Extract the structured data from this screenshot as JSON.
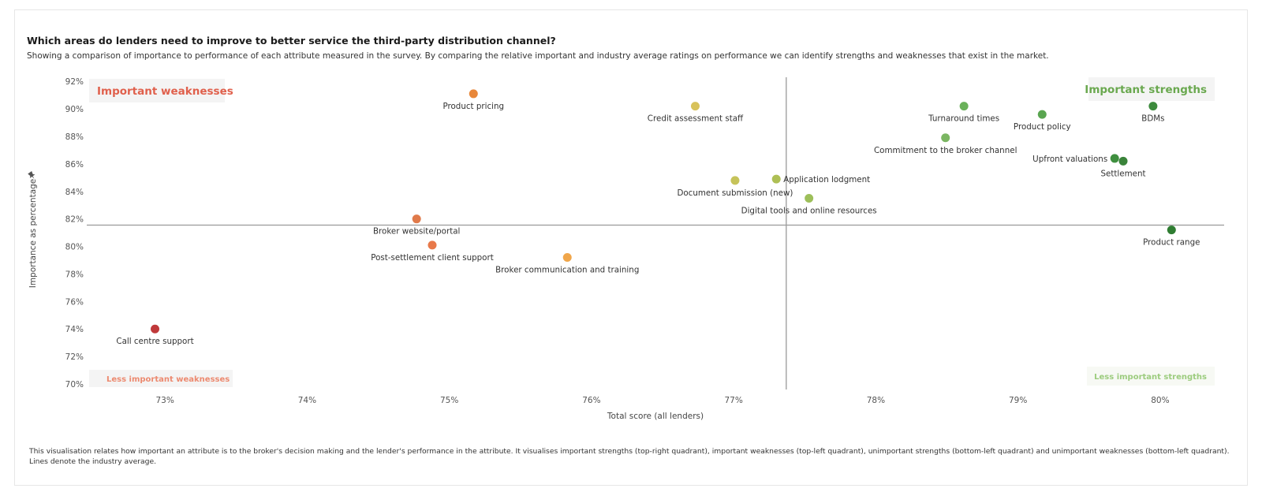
{
  "title": "Which areas do lenders need to improve to better service the third-party distribution channel?",
  "subtitle": "Showing a comparison of importance to performance of each attribute measured in the survey. By comparing the relative important and industry average ratings on performance we can identify strengths and weaknesses that exist in the market.",
  "footnote": "This visualisation relates how important an attribute is to the broker's decision making and the lender's performance in the attribute. It visualises important strengths (top-right quadrant), important weaknesses (top-left quadrant), unimportant strengths (bottom-left quadrant) and unimportant weaknesses (bottom-left quadrant). Lines denote the industry average.",
  "pin_icon": "pin-icon",
  "quadrants": {
    "top_left": {
      "label": "Important weaknesses",
      "color": "#e0604c",
      "bg": "#f4f4f4"
    },
    "top_right": {
      "label": "Important strengths",
      "color": "#6aa84f",
      "bg": "#f4f4f4"
    },
    "bottom_left": {
      "label": "Less important weaknesses",
      "color": "#ec8a70",
      "bg": "#f4f4f4"
    },
    "bottom_right": {
      "label": "Less important strengths",
      "color": "#9ccc7e",
      "bg": "#f7f9f4"
    }
  },
  "chart_data": {
    "type": "scatter",
    "xlabel": "Total score (all lenders)",
    "ylabel": "Importance as percentage",
    "xlim": [
      72.45,
      80.45
    ],
    "ylim": [
      69.6,
      92.3
    ],
    "x_ticks": [
      "73%",
      "74%",
      "75%",
      "76%",
      "77%",
      "78%",
      "79%",
      "80%"
    ],
    "x_tick_values": [
      73,
      74,
      75,
      76,
      77,
      78,
      79,
      80
    ],
    "y_ticks": [
      "92%",
      "90%",
      "88%",
      "86%",
      "84%",
      "82%",
      "80%",
      "78%",
      "76%",
      "74%",
      "72%",
      "70%"
    ],
    "y_tick_values": [
      92,
      90,
      88,
      86,
      84,
      82,
      80,
      78,
      76,
      74,
      72,
      70
    ],
    "reference_lines": {
      "x_average": 77.37,
      "y_average": 81.55
    },
    "points": [
      {
        "label": "Product pricing",
        "x": 75.17,
        "y": 91.1,
        "color": "#e8873a",
        "label_pos": "below"
      },
      {
        "label": "Credit assessment staff",
        "x": 76.73,
        "y": 90.2,
        "color": "#d8c25a",
        "label_pos": "below"
      },
      {
        "label": "Turnaround times",
        "x": 78.62,
        "y": 90.2,
        "color": "#6ab15a",
        "label_pos": "below"
      },
      {
        "label": "Product policy",
        "x": 79.17,
        "y": 89.6,
        "color": "#5aa550",
        "label_pos": "below"
      },
      {
        "label": "BDMs",
        "x": 79.95,
        "y": 90.2,
        "color": "#3d8b3d",
        "label_pos": "below"
      },
      {
        "label": "Commitment to the broker channel",
        "x": 78.49,
        "y": 87.9,
        "color": "#7bb662",
        "label_pos": "below"
      },
      {
        "label": "Upfront valuations",
        "x": 79.68,
        "y": 86.4,
        "color": "#3f8f3f",
        "label_pos": "left"
      },
      {
        "label": "Settlement",
        "x": 79.74,
        "y": 86.2,
        "color": "#3a833a",
        "label_pos": "below"
      },
      {
        "label": "Document submission (new)",
        "x": 77.01,
        "y": 84.8,
        "color": "#c6c35a",
        "label_pos": "below"
      },
      {
        "label": "Application lodgment",
        "x": 77.3,
        "y": 84.9,
        "color": "#aebf55",
        "label_pos": "right"
      },
      {
        "label": "Digital tools and online resources",
        "x": 77.53,
        "y": 83.5,
        "color": "#9dbf5a",
        "label_pos": "below"
      },
      {
        "label": "Product range",
        "x": 80.08,
        "y": 81.2,
        "color": "#2f7d32",
        "label_pos": "below"
      },
      {
        "label": "Broker website/portal",
        "x": 74.77,
        "y": 82.0,
        "color": "#e07a4a",
        "label_pos": "below"
      },
      {
        "label": "Post-settlement client support",
        "x": 74.88,
        "y": 80.1,
        "color": "#e8794a",
        "label_pos": "below"
      },
      {
        "label": "Broker communication and training",
        "x": 75.83,
        "y": 79.2,
        "color": "#f0a64a",
        "label_pos": "below"
      },
      {
        "label": "Call centre support",
        "x": 72.93,
        "y": 74.0,
        "color": "#c0393a",
        "label_pos": "below"
      }
    ]
  }
}
